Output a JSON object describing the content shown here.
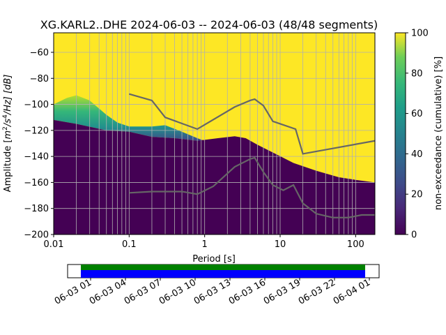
{
  "chart_data": {
    "type": "heatmap",
    "title": "XG.KARL2..DHE   2024-06-03 -- 2024-06-03  (48/48 segments)",
    "xlabel": "Period [s]",
    "ylabel_prefix": "Amplitude [",
    "ylabel_unit": "m",
    "ylabel_exp1": "2",
    "ylabel_mid": "/s",
    "ylabel_exp2": "4",
    "ylabel_end": "/Hz] [dB]",
    "xscale": "log",
    "xlim": [
      0.01,
      180
    ],
    "ylim": [
      -200,
      -45
    ],
    "grid": true,
    "x_ticks": [
      {
        "value": 0.01,
        "label": "0.01"
      },
      {
        "value": 0.1,
        "label": "0.1"
      },
      {
        "value": 1,
        "label": "1"
      },
      {
        "value": 10,
        "label": "10"
      },
      {
        "value": 100,
        "label": "100"
      }
    ],
    "y_ticks": [
      {
        "value": -60,
        "label": "−60"
      },
      {
        "value": -80,
        "label": "−80"
      },
      {
        "value": -100,
        "label": "−100"
      },
      {
        "value": -120,
        "label": "−120"
      },
      {
        "value": -140,
        "label": "−140"
      },
      {
        "value": -160,
        "label": "−160"
      },
      {
        "value": -180,
        "label": "−180"
      },
      {
        "value": -200,
        "label": "−200"
      }
    ],
    "colorbar": {
      "label": "non-exceedance (cumulative) [%]",
      "range": [
        0,
        100
      ],
      "ticks": [
        {
          "value": 0,
          "label": "0"
        },
        {
          "value": 20,
          "label": "20"
        },
        {
          "value": 40,
          "label": "40"
        },
        {
          "value": 60,
          "label": "60"
        },
        {
          "value": 80,
          "label": "80"
        },
        {
          "value": 100,
          "label": "100"
        }
      ],
      "colormap": "viridis",
      "colors": [
        "#440154",
        "#3b528b",
        "#21918c",
        "#5ec962",
        "#fde725"
      ]
    },
    "psd_floor": [
      {
        "x": 0.01,
        "y": -112
      },
      {
        "x": 0.02,
        "y": -115
      },
      {
        "x": 0.05,
        "y": -120
      },
      {
        "x": 0.1,
        "y": -121
      },
      {
        "x": 0.2,
        "y": -125
      },
      {
        "x": 0.4,
        "y": -126
      },
      {
        "x": 0.8,
        "y": -128
      },
      {
        "x": 1.5,
        "y": -126
      },
      {
        "x": 2.5,
        "y": -124.5
      },
      {
        "x": 3.5,
        "y": -126
      },
      {
        "x": 5,
        "y": -131
      },
      {
        "x": 8,
        "y": -137
      },
      {
        "x": 15,
        "y": -145
      },
      {
        "x": 30,
        "y": -151
      },
      {
        "x": 60,
        "y": -156
      },
      {
        "x": 100,
        "y": -158
      },
      {
        "x": 180,
        "y": -160
      }
    ],
    "psd_high_edge": [
      {
        "x": 0.01,
        "y": -100
      },
      {
        "x": 0.015,
        "y": -95
      },
      {
        "x": 0.02,
        "y": -93
      },
      {
        "x": 0.03,
        "y": -97
      },
      {
        "x": 0.05,
        "y": -108
      },
      {
        "x": 0.07,
        "y": -114
      },
      {
        "x": 0.1,
        "y": -117
      },
      {
        "x": 0.2,
        "y": -117
      },
      {
        "x": 0.3,
        "y": -116
      },
      {
        "x": 0.5,
        "y": -121
      },
      {
        "x": 0.8,
        "y": -126
      },
      {
        "x": 1.0,
        "y": -128
      }
    ],
    "series": [
      {
        "name": "",
        "x": [
          0.1,
          0.2,
          0.3,
          0.8,
          2.5,
          4,
          4.6,
          6,
          8,
          16,
          20,
          180
        ],
        "y": [
          -92,
          -97,
          -110,
          -119,
          -102,
          -97,
          -96,
          -101,
          -113,
          -119,
          -138,
          -128
        ]
      },
      {
        "name": "",
        "x": [
          0.1,
          0.2,
          0.5,
          0.8,
          1.3,
          2.5,
          4,
          4.6,
          6,
          8,
          11,
          15,
          20,
          30,
          50,
          80,
          120,
          180
        ],
        "y": [
          -168,
          -167,
          -167,
          -169,
          -163,
          -148,
          -142,
          -141,
          -152,
          -162,
          -166,
          -162,
          -176,
          -184,
          -187,
          -187,
          -185,
          -185
        ]
      }
    ]
  },
  "availability": {
    "time_labels": [
      "06-03 01",
      "06-03 04",
      "06-03 07",
      "06-03 10",
      "06-03 13",
      "06-03 16",
      "06-03 19",
      "06-03 22",
      "06-04 01"
    ],
    "data_color": "#0000ff",
    "gap_color": "#008000"
  }
}
